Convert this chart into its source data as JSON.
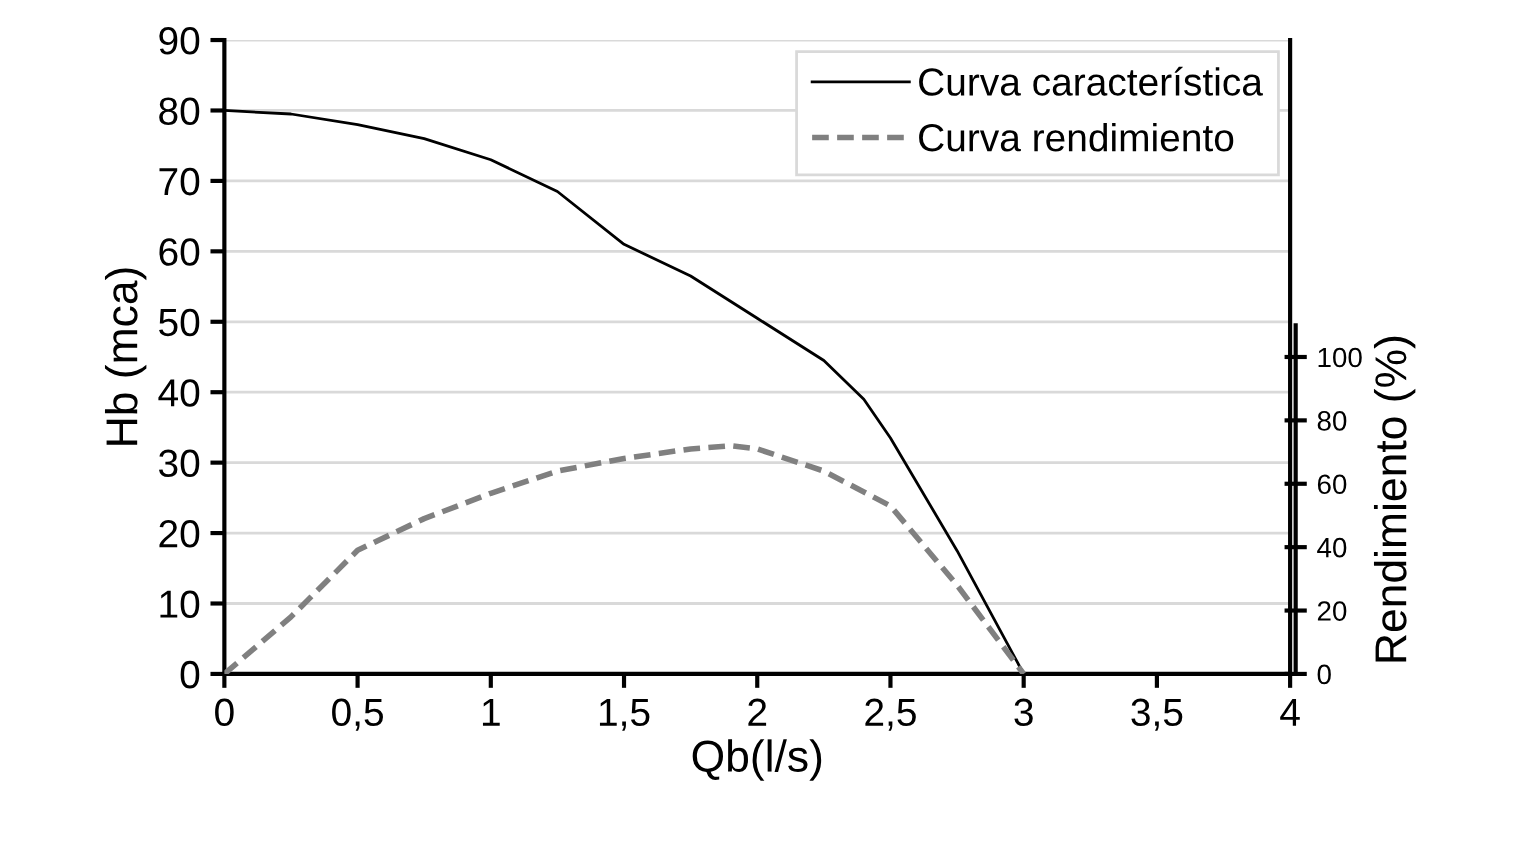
{
  "chart_data": {
    "type": "line",
    "xlabel": "Qb(l/s)",
    "ylabel": "Hb (mca)",
    "y2label": "Rendimiento (%)",
    "xlim": [
      0,
      4
    ],
    "xticks": [
      0,
      {
        "value": 0.5,
        "label": "0,5"
      },
      1,
      {
        "value": 1.5,
        "label": "1,5"
      },
      2,
      {
        "value": 2.5,
        "label": "2,5"
      },
      3,
      {
        "value": 3.5,
        "label": "3,5"
      },
      4
    ],
    "ylim": [
      0,
      90
    ],
    "yticks": [
      0,
      10,
      20,
      30,
      40,
      50,
      60,
      70,
      80,
      90
    ],
    "y2lim": [
      0,
      110
    ],
    "y2ticks": [
      0,
      20,
      40,
      60,
      80,
      100
    ],
    "grid": "y",
    "legend": "top right",
    "marker": "none",
    "series": [
      {
        "name": "Curva característica",
        "color": "#000000",
        "line_style": "solid",
        "x": [
          0,
          0.25,
          0.5,
          0.75,
          1,
          1.25,
          1.5,
          1.75,
          2,
          2.25,
          2.4,
          2.5,
          2.75,
          3
        ],
        "values": [
          80,
          79.5,
          78,
          76,
          73,
          68.5,
          61,
          56.5,
          50.5,
          44.5,
          39,
          33.5,
          17.5,
          0
        ]
      },
      {
        "name": "Curva rendimiento",
        "color": "#808080",
        "line_style": "dashed",
        "axis": "y2",
        "x": [
          0,
          0.25,
          0.5,
          0.75,
          1,
          1.25,
          1.5,
          1.75,
          1.9,
          2,
          2.25,
          2.5,
          2.75,
          3
        ],
        "values": [
          0,
          18,
          39,
          49,
          57,
          64,
          68,
          71,
          72,
          71,
          64,
          53,
          28,
          0
        ]
      }
    ]
  }
}
